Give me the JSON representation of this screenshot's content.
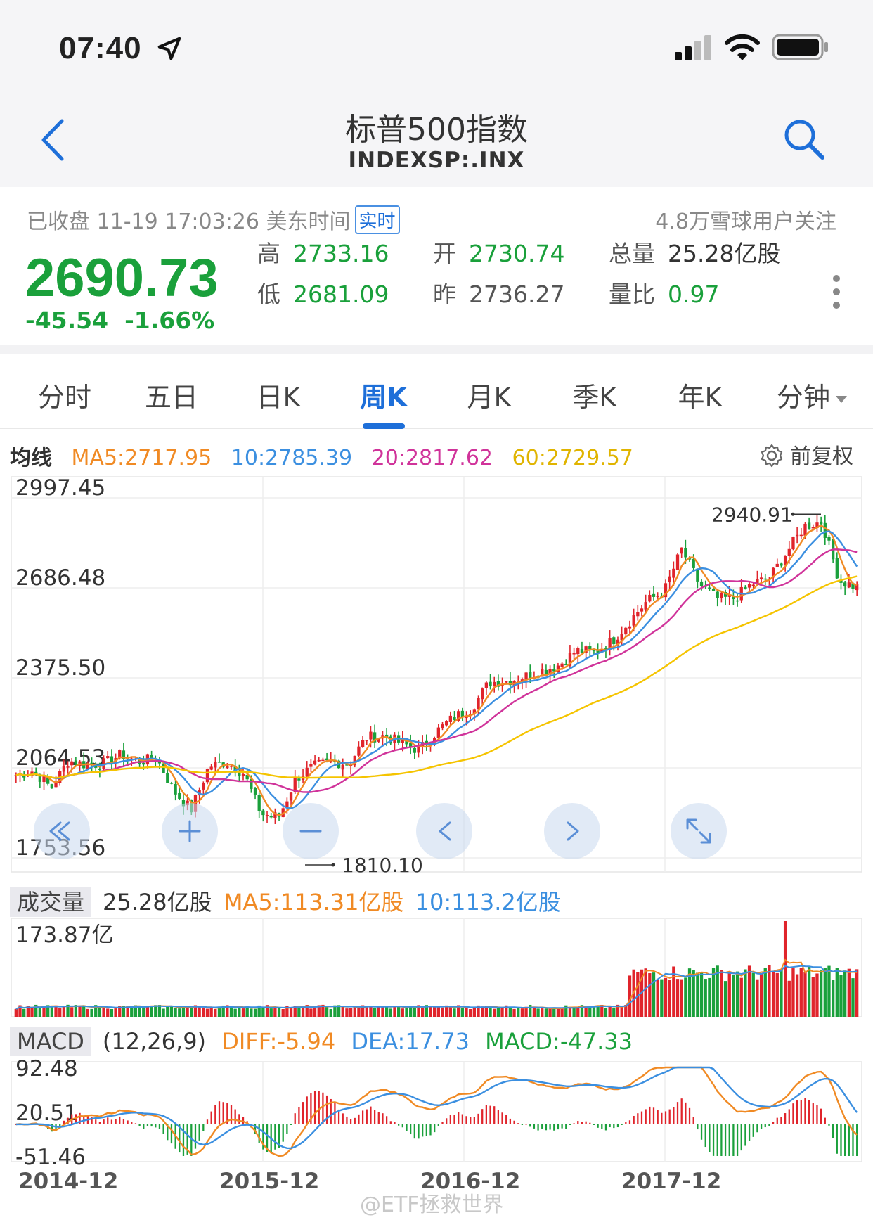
{
  "status_bar": {
    "time": "07:40"
  },
  "nav": {
    "title": "标普500指数",
    "subtitle": "INDEXSP:.INX"
  },
  "quote": {
    "status": "已收盘 11-19 17:03:26 美东时间",
    "badge": "实时",
    "followers": "4.8万雪球用户关注",
    "price": "2690.73",
    "change": "-45.54",
    "change_pct": "-1.66%",
    "high_label": "高",
    "high": "2733.16",
    "low_label": "低",
    "low": "2681.09",
    "open_label": "开",
    "open": "2730.74",
    "prev_label": "昨",
    "prev": "2736.27",
    "volume_label": "总量",
    "volume": "25.28亿股",
    "ratio_label": "量比",
    "ratio": "0.97"
  },
  "tabs": [
    {
      "label": "分时"
    },
    {
      "label": "五日"
    },
    {
      "label": "日K"
    },
    {
      "label": "周K"
    },
    {
      "label": "月K"
    },
    {
      "label": "季K"
    },
    {
      "label": "年K"
    },
    {
      "label": "分钟"
    }
  ],
  "active_tab": "周K",
  "ma": {
    "title": "均线",
    "ma5": "MA5:2717.95",
    "ma10": "10:2785.39",
    "ma20": "20:2817.62",
    "ma60": "60:2729.57",
    "restore": "前复权"
  },
  "volume": {
    "title": "成交量",
    "value": "25.28亿股",
    "ma5": "MA5:113.31亿股",
    "ma10": "10:113.2亿股"
  },
  "macd": {
    "title": "MACD",
    "params": "(12,26,9)",
    "diff": "DIFF:-5.94",
    "dea": "DEA:17.73",
    "macd": "MACD:-47.33"
  },
  "x_labels": [
    "2014-12",
    "2015-12",
    "2016-12",
    "2017-12"
  ],
  "watermark": "@ETF拯救世界",
  "colors": {
    "up": "#e0242b",
    "down": "#1aa03b",
    "accent": "#1e6fd9",
    "ma5": "#f08a24",
    "ma10": "#3b8fe0",
    "ma20": "#d0339a",
    "ma60": "#f5c400"
  },
  "chart_data": {
    "type": "candlestick",
    "period": "weekly",
    "price_axis_ticks": [
      "2997.45",
      "2686.48",
      "2375.50",
      "2064.53",
      "1753.56"
    ],
    "ylim": [
      1753.56,
      2997.45
    ],
    "max_marker": "2940.91",
    "min_marker": "1810.10",
    "volume_axis_max": "173.87亿",
    "volume_ylim": [
      0,
      173.87
    ],
    "macd_axis_ticks": [
      "92.48",
      "20.51",
      "-51.46"
    ],
    "macd_ylim": [
      -51.46,
      92.48
    ],
    "x_ticks": [
      "2014-12",
      "2015-12",
      "2016-12",
      "2017-12"
    ],
    "close_series": {
      "dates": [
        "2014-11",
        "2014-12",
        "2015-01",
        "2015-02",
        "2015-03",
        "2015-04",
        "2015-05",
        "2015-06",
        "2015-07",
        "2015-08",
        "2015-09",
        "2015-10",
        "2015-11",
        "2015-12",
        "2016-01",
        "2016-02",
        "2016-03",
        "2016-04",
        "2016-05",
        "2016-06",
        "2016-07",
        "2016-08",
        "2016-09",
        "2016-10",
        "2016-11",
        "2016-12",
        "2017-01",
        "2017-02",
        "2017-03",
        "2017-04",
        "2017-05",
        "2017-06",
        "2017-07",
        "2017-08",
        "2017-09",
        "2017-10",
        "2017-11",
        "2017-12",
        "2018-01",
        "2018-02",
        "2018-03",
        "2018-04",
        "2018-05",
        "2018-06",
        "2018-07",
        "2018-08",
        "2018-09",
        "2018-10",
        "2018-11"
      ],
      "values": [
        2040,
        2055,
        1995,
        2090,
        2075,
        2080,
        2110,
        2085,
        2100,
        1985,
        1920,
        2070,
        2085,
        2045,
        1905,
        1895,
        2030,
        2070,
        2085,
        2080,
        2170,
        2175,
        2150,
        2125,
        2190,
        2240,
        2270,
        2360,
        2365,
        2380,
        2400,
        2420,
        2470,
        2465,
        2500,
        2570,
        2640,
        2675,
        2820,
        2700,
        2650,
        2650,
        2700,
        2720,
        2810,
        2900,
        2915,
        2710,
        2690
      ]
    }
  }
}
